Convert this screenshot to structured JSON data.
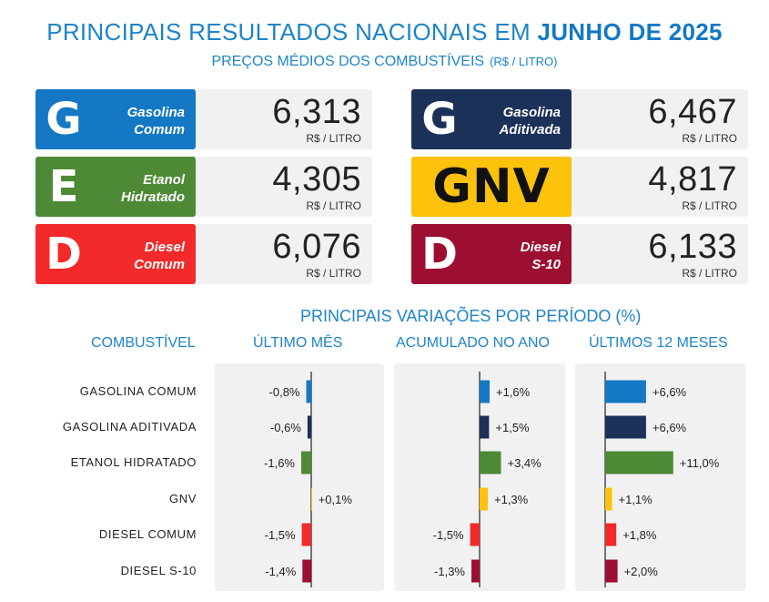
{
  "header": {
    "title_prefix": "PRINCIPAIS RESULTADOS NACIONAIS EM",
    "title_highlight": "JUNHO DE 2025",
    "subtitle": "PREÇOS MÉDIOS DOS COMBUSTÍVEIS",
    "subtitle_unit": "(R$ / LITRO)"
  },
  "prices": [
    {
      "letter": "G",
      "name": "Gasolina\nComum",
      "price": "6,313",
      "unit": "R$ / LITRO",
      "color": "#1478c4"
    },
    {
      "letter": "G",
      "name": "Gasolina\nAditivada",
      "price": "6,467",
      "unit": "R$ / LITRO",
      "color": "#1c3158"
    },
    {
      "letter": "E",
      "name": "Etanol\nHidratado",
      "price": "4,305",
      "unit": "R$ / LITRO",
      "color": "#4e8a35"
    },
    {
      "letter": "GNV",
      "name": "",
      "price": "4,817",
      "unit": "R$ / LITRO",
      "color": "#fcc20c"
    },
    {
      "letter": "D",
      "name": "Diesel\nComum",
      "price": "6,076",
      "unit": "R$ / LITRO",
      "color": "#f22a2a"
    },
    {
      "letter": "D",
      "name": "Diesel\nS-10",
      "price": "6,133",
      "unit": "R$ / LITRO",
      "color": "#9c0f33"
    }
  ],
  "variations": {
    "title": "PRINCIPAIS VARIAÇÕES POR PERÍODO (%)",
    "col_fuel": "COMBUSTÍVEL"
  },
  "chart_data": {
    "type": "bar",
    "orientation": "horizontal",
    "categories": [
      "GASOLINA COMUM",
      "GASOLINA ADITIVADA",
      "ETANOL HIDRATADO",
      "GNV",
      "DIESEL COMUM",
      "DIESEL  S-10"
    ],
    "colors": [
      "#1478c4",
      "#1c3158",
      "#4e8a35",
      "#fcc20c",
      "#f22a2a",
      "#9c0f33"
    ],
    "series": [
      {
        "name": "ÚLTIMO MÊS",
        "values": [
          -0.8,
          -0.6,
          -1.6,
          0.1,
          -1.5,
          -1.4
        ],
        "labels": [
          "-0,8%",
          "-0,6%",
          "-1,6%",
          "+0,1%",
          "-1,5%",
          "-1,4%"
        ]
      },
      {
        "name": "ACUMULADO NO ANO",
        "values": [
          1.6,
          1.5,
          3.4,
          1.3,
          -1.5,
          -1.3
        ],
        "labels": [
          "+1,6%",
          "+1,5%",
          "+3,4%",
          "+1,3%",
          "-1,5%",
          "-1,3%"
        ]
      },
      {
        "name": "ÚLTIMOS 12 MESES",
        "values": [
          6.6,
          6.6,
          11.0,
          1.1,
          1.8,
          2.0
        ],
        "labels": [
          "+6,6%",
          "+6,6%",
          "+11,0%",
          "+1,1%",
          "+1,8%",
          "+2,0%"
        ]
      }
    ]
  }
}
